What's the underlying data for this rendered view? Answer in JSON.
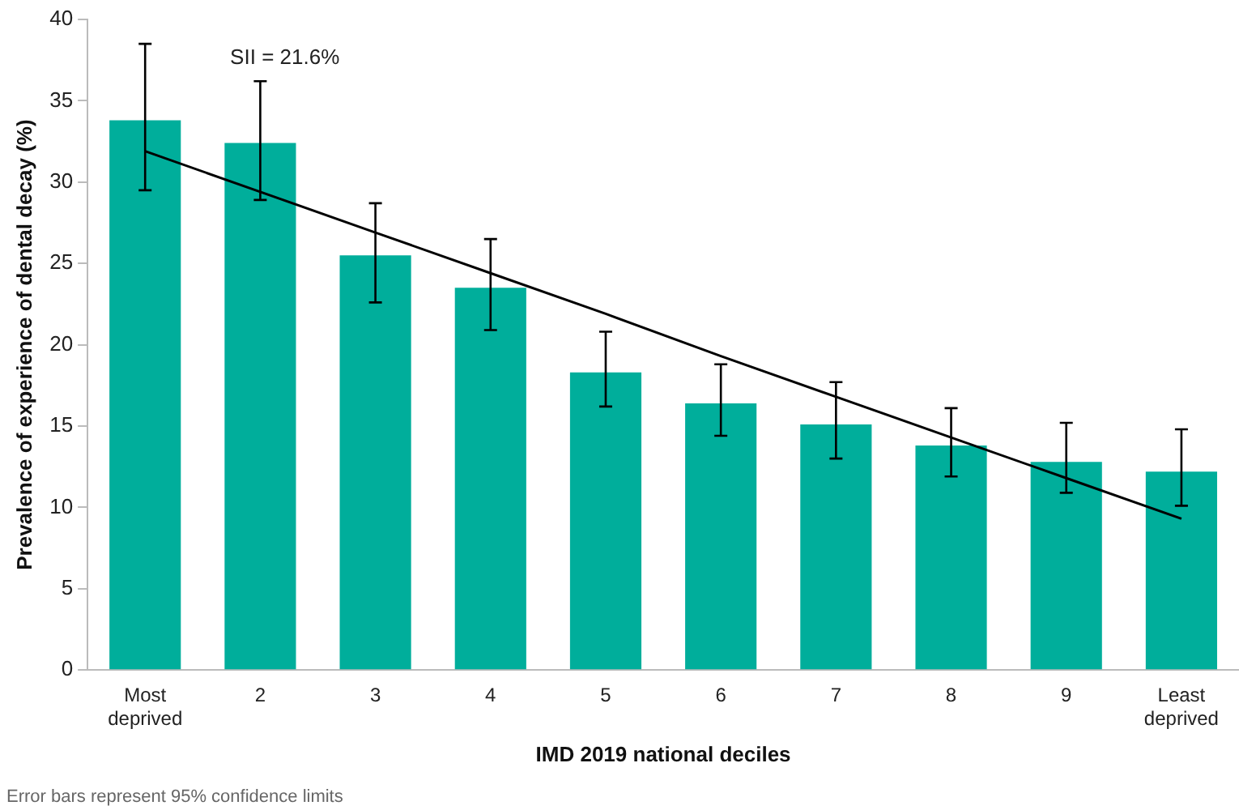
{
  "chart_data": {
    "type": "bar",
    "xlabel": "IMD 2019 national deciles",
    "ylabel": "Prevalence of experience of dental decay (%)",
    "categories": [
      "Most deprived",
      "2",
      "3",
      "4",
      "5",
      "6",
      "7",
      "8",
      "9",
      "Least deprived"
    ],
    "series": [
      {
        "color": "#00ae9b",
        "values": [
          33.8,
          32.4,
          25.5,
          23.5,
          18.3,
          16.4,
          15.1,
          13.8,
          12.8,
          12.2
        ],
        "errors": [
          [
            29.5,
            38.5
          ],
          [
            28.9,
            36.2
          ],
          [
            22.6,
            28.7
          ],
          [
            20.9,
            26.5
          ],
          [
            16.2,
            20.8
          ],
          [
            14.4,
            18.8
          ],
          [
            13.0,
            17.7
          ],
          [
            11.9,
            16.1
          ],
          [
            10.9,
            15.2
          ],
          [
            10.1,
            14.8
          ]
        ]
      },
      {
        "type": "line",
        "color": "#000000",
        "marker": "none",
        "values": [
          31.9,
          29.4,
          26.9,
          24.4,
          21.9,
          19.3,
          16.8,
          14.3,
          11.8,
          9.3
        ]
      }
    ],
    "ylim": [
      0,
      40
    ],
    "yticks": [
      0,
      5,
      10,
      15,
      20,
      25,
      30,
      35,
      40
    ],
    "grid": false,
    "legend": false,
    "annotations": [
      "SII = 21.6%",
      "Error bars represent 95% confidence limits"
    ]
  }
}
